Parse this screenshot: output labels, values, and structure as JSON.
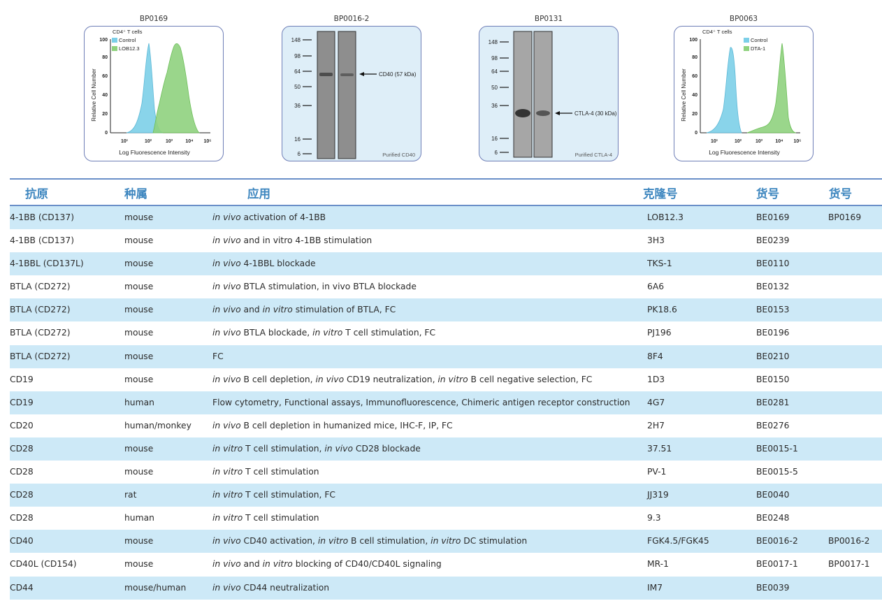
{
  "figures": [
    {
      "title": "BP0169",
      "type": "histogram",
      "corner_label": "CD4⁺ T cells",
      "legend": [
        {
          "label": "Control",
          "color": "#7ccfe8"
        },
        {
          "label": "LOB12.3",
          "color": "#8fd27e"
        }
      ],
      "ylabel": "Relative Cell Number",
      "xlabel": "Log Fluorescence Intensity",
      "yticks": [
        "0",
        "20",
        "40",
        "60",
        "80",
        "100"
      ],
      "xticks": [
        "10¹",
        "10²",
        "10³",
        "10⁴",
        "10⁵"
      ]
    },
    {
      "title": "BP0016-2",
      "type": "blot",
      "markers": [
        "148",
        "98",
        "64",
        "50",
        "36",
        "16",
        "6"
      ],
      "band_label": "CD40 (57 kDa)",
      "caption": "Purified CD40"
    },
    {
      "title": "BP0131",
      "type": "blot",
      "markers": [
        "148",
        "98",
        "64",
        "50",
        "36",
        "16",
        "6"
      ],
      "band_label": "CTLA-4 (30 kDa)",
      "caption": "Purified CTLA-4"
    },
    {
      "title": "BP0063",
      "type": "histogram",
      "corner_label": "CD4⁺ T cells",
      "legend": [
        {
          "label": "Control",
          "color": "#7ccfe8"
        },
        {
          "label": "DTA-1",
          "color": "#8fd27e"
        }
      ],
      "ylabel": "Relative Cell Number",
      "xlabel": "Log Fluorescence Intensity",
      "yticks": [
        "0",
        "20",
        "40",
        "60",
        "80",
        "100"
      ],
      "xticks": [
        "10¹",
        "10²",
        "10³",
        "10⁴",
        "10⁵"
      ]
    }
  ],
  "table": {
    "headers": [
      "抗原",
      "种属",
      "应用",
      "克隆号",
      "货号",
      "货号"
    ],
    "rows": [
      {
        "antigen": "4-1BB (CD137)",
        "species": "mouse",
        "app": [
          [
            "i",
            "in vivo"
          ],
          [
            "n",
            " activation of 4-1BB"
          ]
        ],
        "clone": "LOB12.3",
        "cat": "BE0169",
        "cat2": "BP0169"
      },
      {
        "antigen": "4-1BB (CD137)",
        "species": "mouse",
        "app": [
          [
            "i",
            "in vivo"
          ],
          [
            "n",
            " and in vitro 4-1BB stimulation"
          ]
        ],
        "clone": "3H3",
        "cat": "BE0239",
        "cat2": ""
      },
      {
        "antigen": "4-1BBL (CD137L)",
        "species": "mouse",
        "app": [
          [
            "i",
            "in vivo"
          ],
          [
            "n",
            " 4-1BBL blockade"
          ]
        ],
        "clone": "TKS-1",
        "cat": "BE0110",
        "cat2": ""
      },
      {
        "antigen": "BTLA (CD272)",
        "species": "mouse",
        "app": [
          [
            "i",
            "in vivo"
          ],
          [
            "n",
            " BTLA stimulation, in vivo BTLA blockade"
          ]
        ],
        "clone": "6A6",
        "cat": "BE0132",
        "cat2": ""
      },
      {
        "antigen": "BTLA (CD272)",
        "species": "mouse",
        "app": [
          [
            "i",
            "in vivo"
          ],
          [
            "n",
            " and "
          ],
          [
            "i",
            "in vitro"
          ],
          [
            "n",
            " stimulation of BTLA, FC"
          ]
        ],
        "clone": "PK18.6",
        "cat": "BE0153",
        "cat2": ""
      },
      {
        "antigen": "BTLA (CD272)",
        "species": "mouse",
        "app": [
          [
            "i",
            "in vivo"
          ],
          [
            "n",
            " BTLA blockade, "
          ],
          [
            "i",
            "in vitro"
          ],
          [
            "n",
            " T cell stimulation, FC"
          ]
        ],
        "clone": "PJ196",
        "cat": "BE0196",
        "cat2": ""
      },
      {
        "antigen": "BTLA (CD272)",
        "species": "mouse",
        "app": [
          [
            "n",
            "FC"
          ]
        ],
        "clone": "8F4",
        "cat": "BE0210",
        "cat2": ""
      },
      {
        "antigen": "CD19",
        "species": "mouse",
        "app": [
          [
            "i",
            "in vivo"
          ],
          [
            "n",
            " B cell depletion, "
          ],
          [
            "i",
            "in vivo"
          ],
          [
            "n",
            " CD19 neutralization, "
          ],
          [
            "i",
            "in vitro"
          ],
          [
            "n",
            " B cell negative selection, FC"
          ]
        ],
        "clone": "1D3",
        "cat": "BE0150",
        "cat2": ""
      },
      {
        "antigen": "CD19",
        "species": "human",
        "app": [
          [
            "n",
            "Flow cytometry, Functional assays, Immunofluorescence, Chimeric antigen receptor construction"
          ]
        ],
        "clone": "4G7",
        "cat": "BE0281",
        "cat2": ""
      },
      {
        "antigen": "CD20",
        "species": "human/monkey",
        "app": [
          [
            "i",
            "in vivo"
          ],
          [
            "n",
            " B cell depletion in humanized mice, IHC-F, IP, FC"
          ]
        ],
        "clone": "2H7",
        "cat": "BE0276",
        "cat2": ""
      },
      {
        "antigen": "CD28",
        "species": "mouse",
        "app": [
          [
            "i",
            "in vitro"
          ],
          [
            "n",
            " T cell stimulation, "
          ],
          [
            "i",
            "in vivo"
          ],
          [
            "n",
            " CD28 blockade"
          ]
        ],
        "clone": "37.51",
        "cat": "BE0015-1",
        "cat2": ""
      },
      {
        "antigen": "CD28",
        "species": "mouse",
        "app": [
          [
            "i",
            "in vitro"
          ],
          [
            "n",
            " T cell stimulation"
          ]
        ],
        "clone": "PV-1",
        "cat": "BE0015-5",
        "cat2": ""
      },
      {
        "antigen": "CD28",
        "species": "rat",
        "app": [
          [
            "i",
            "in vitro"
          ],
          [
            "n",
            " T cell stimulation, FC"
          ]
        ],
        "clone": "JJ319",
        "cat": "BE0040",
        "cat2": ""
      },
      {
        "antigen": "CD28",
        "species": "human",
        "app": [
          [
            "i",
            "in vitro"
          ],
          [
            "n",
            " T cell stimulation"
          ]
        ],
        "clone": "9.3",
        "cat": "BE0248",
        "cat2": ""
      },
      {
        "antigen": "CD40",
        "species": "mouse",
        "app": [
          [
            "i",
            "in vivo"
          ],
          [
            "n",
            " CD40 activation, "
          ],
          [
            "i",
            "in vitro"
          ],
          [
            "n",
            " B cell stimulation, "
          ],
          [
            "i",
            "in vitro"
          ],
          [
            "n",
            " DC stimulation"
          ]
        ],
        "clone": "FGK4.5/FGK45",
        "cat": "BE0016-2",
        "cat2": "BP0016-2"
      },
      {
        "antigen": "CD40L (CD154)",
        "species": "mouse",
        "app": [
          [
            "i",
            "in vivo"
          ],
          [
            "n",
            " and "
          ],
          [
            "i",
            "in vitro"
          ],
          [
            "n",
            " blocking of CD40/CD40L signaling"
          ]
        ],
        "clone": "MR-1",
        "cat": "BE0017-1",
        "cat2": "BP0017-1"
      },
      {
        "antigen": "CD44",
        "species": "mouse/human",
        "app": [
          [
            "i",
            "in vivo"
          ],
          [
            "n",
            " CD44 neutralization"
          ]
        ],
        "clone": "IM7",
        "cat": "BE0039",
        "cat2": ""
      }
    ]
  }
}
